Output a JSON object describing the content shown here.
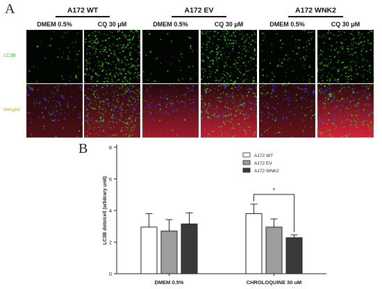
{
  "panel_a": {
    "letter": "A",
    "groups": [
      {
        "title": "A172 WT",
        "conditions": [
          "DMEM 0.5%",
          "CQ 30 μM"
        ]
      },
      {
        "title": "A172 EV",
        "conditions": [
          "DMEM 0.5%",
          "CQ 30 μM"
        ]
      },
      {
        "title": "A172 WNK2",
        "conditions": [
          "DMEM 0.5%",
          "CQ 30 μM"
        ]
      }
    ],
    "rows": [
      {
        "label": "LC3B",
        "label_color": "#27c42a"
      },
      {
        "label": "Merged",
        "label_color": "#c9b21f"
      }
    ],
    "colors": {
      "green": "#43d81e",
      "red": "#e3233f",
      "blue": "#3a3ad8"
    },
    "green_density": [
      [
        0.12,
        0.85,
        0.1,
        0.75,
        0.25,
        0.6
      ],
      [
        0.1,
        0.65,
        0.08,
        0.55,
        0.18,
        0.45
      ]
    ],
    "red_density": [
      0.35,
      0.55,
      0.7,
      0.85,
      0.45,
      0.95
    ]
  },
  "panel_b": {
    "letter": "B",
    "chart_data": {
      "type": "bar",
      "categories": [
        "DMEM 0.5%",
        "CHROLOQUINE 30 uM"
      ],
      "series": [
        {
          "name": "A172 WT",
          "color": "#ffffff",
          "values": [
            2.95,
            3.8
          ],
          "errors": [
            0.85,
            0.6
          ]
        },
        {
          "name": "A172 EV",
          "color": "#9e9e9e",
          "values": [
            2.7,
            2.95
          ],
          "errors": [
            0.72,
            0.52
          ]
        },
        {
          "name": "A172 WNK2",
          "color": "#3a3a3a",
          "values": [
            3.15,
            2.28
          ],
          "errors": [
            0.7,
            0.18
          ]
        }
      ],
      "ylabel": "LC3B dots/cell (arbitrary unit)",
      "xlabel": "",
      "ylim": [
        0,
        8
      ],
      "yticks": [
        0,
        2,
        4,
        6,
        8
      ],
      "legend_position": "top-right",
      "significance": {
        "symbol": "*",
        "between": [
          "A172 WT",
          "A172 WNK2"
        ],
        "category": "CHROLOQUINE 30 uM"
      }
    }
  }
}
